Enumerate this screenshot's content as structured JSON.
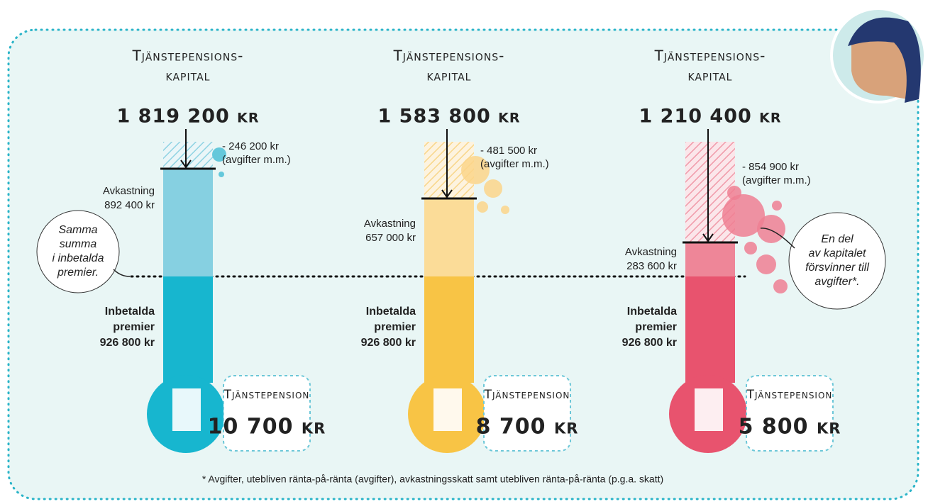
{
  "columns": [
    {
      "heading_line1": "Tjänstepensions-",
      "heading_line2": "kapital",
      "capital": "1 819 200 kr",
      "fees": "- 246 200 kr",
      "fees_note": "(avgifter m.m.)",
      "return_label": "Avkastning",
      "return_value": "892 400 kr",
      "paid_line1": "Inbetalda",
      "paid_line2": "premier",
      "paid_value": "926 800 kr",
      "pension_label": "Tjänstepension",
      "pension_value": "10 700 kr"
    },
    {
      "heading_line1": "Tjänstepensions-",
      "heading_line2": "kapital",
      "capital": "1 583 800 kr",
      "fees": "- 481 500 kr",
      "fees_note": "(avgifter m.m.)",
      "return_label": "Avkastning",
      "return_value": "657 000 kr",
      "paid_line1": "Inbetalda",
      "paid_line2": "premier",
      "paid_value": "926 800 kr",
      "pension_label": "Tjänstepension",
      "pension_value": "8 700 kr"
    },
    {
      "heading_line1": "Tjänstepensions-",
      "heading_line2": "kapital",
      "capital": "1 210 400 kr",
      "fees": "- 854 900 kr",
      "fees_note": "(avgifter m.m.)",
      "return_label": "Avkastning",
      "return_value": "283 600 kr",
      "paid_line1": "Inbetalda",
      "paid_line2": "premier",
      "paid_value": "926 800 kr",
      "pension_label": "Tjänstepension",
      "pension_value": "5 800 kr"
    }
  ],
  "callouts": {
    "left": [
      "Samma",
      "summa",
      "i inbetalda",
      "premier."
    ],
    "right": [
      "En del",
      "av kapitalet",
      "försvinner till",
      "avgifter*."
    ]
  },
  "footnote": "* Avgifter, utebliven ränta-på-ränta (avgifter), avkastningsskatt samt utebliven ränta-på-ränta (p.g.a. skatt)"
}
